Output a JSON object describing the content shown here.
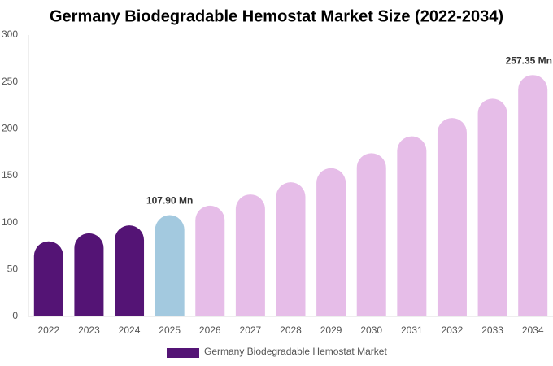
{
  "chart_data": {
    "type": "bar",
    "title": "Germany Biodegradable Hemostat Market Size (2022-2034)",
    "categories": [
      "2022",
      "2023",
      "2024",
      "2025",
      "2026",
      "2027",
      "2028",
      "2029",
      "2030",
      "2031",
      "2032",
      "2033",
      "2034"
    ],
    "series": [
      {
        "name": "Germany Biodegradable Hemostat Market",
        "color": "#541475",
        "values": [
          80,
          88.5,
          97,
          107.9,
          118,
          130,
          143,
          158,
          174,
          192,
          211.5,
          232,
          257.35
        ],
        "colors": [
          "#541475",
          "#541475",
          "#541475",
          "#a3c9df",
          "#e6bde8",
          "#e6bde8",
          "#e6bde8",
          "#e6bde8",
          "#e6bde8",
          "#e6bde8",
          "#e6bde8",
          "#e6bde8",
          "#e6bde8"
        ],
        "value_labels": [
          null,
          null,
          null,
          "107.90 Mn",
          null,
          null,
          null,
          null,
          null,
          null,
          null,
          null,
          "257.35 Mn"
        ]
      }
    ],
    "ylim": [
      0,
      300
    ],
    "yticks": [
      0,
      50,
      100,
      150,
      200,
      250,
      300
    ],
    "grid": false
  }
}
